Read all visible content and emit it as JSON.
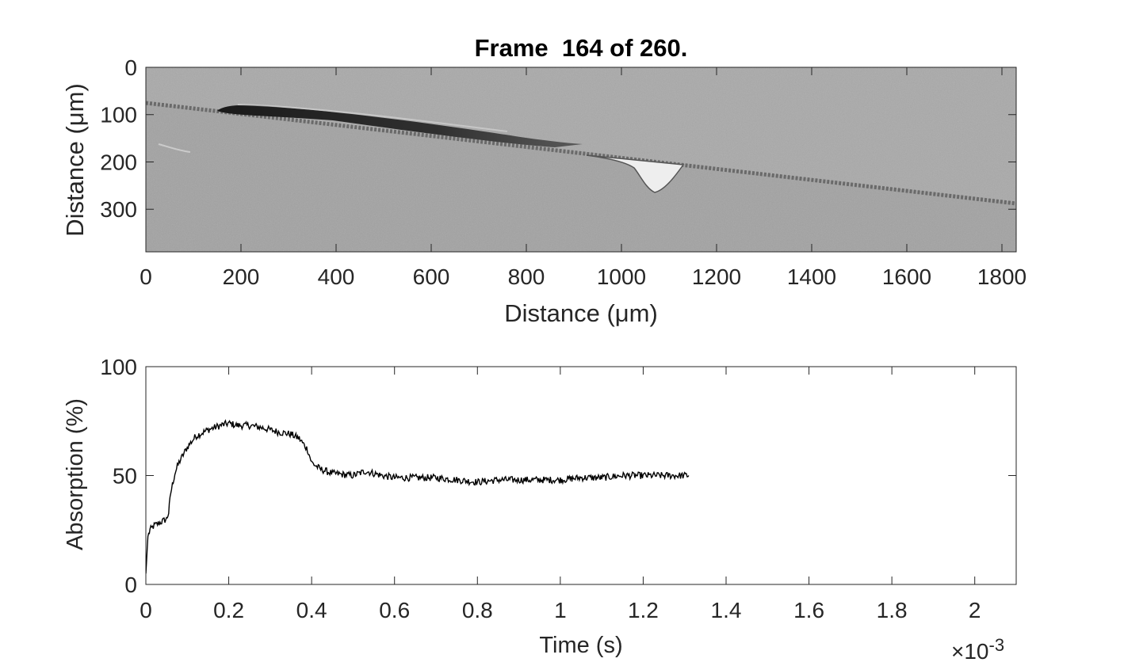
{
  "chart_data": [
    {
      "type": "heatmap",
      "title": "Frame  164 of 260.",
      "xlabel": "Distance (μm)",
      "ylabel": "Distance (μm)",
      "xlim": [
        0,
        1830
      ],
      "ylim": [
        390,
        0
      ],
      "y_reversed": true,
      "xticks": [
        0,
        200,
        400,
        600,
        800,
        1000,
        1200,
        1400,
        1600,
        1800
      ],
      "yticks": [
        0,
        100,
        200,
        300
      ],
      "colormap": "gray",
      "grid": false,
      "image_description_features": {
        "interface_line": [
          [
            0,
            75
          ],
          [
            1830,
            285
          ]
        ],
        "dark_region": [
          [
            150,
            90
          ],
          [
            280,
            85
          ],
          [
            500,
            110
          ],
          [
            700,
            145
          ],
          [
            850,
            155
          ]
        ],
        "bright_region": [
          [
            930,
            185
          ],
          [
            1010,
            200
          ],
          [
            1065,
            258
          ],
          [
            1110,
            235
          ],
          [
            1140,
            205
          ]
        ]
      }
    },
    {
      "type": "line",
      "title": "",
      "xlabel": "Time (s)",
      "ylabel": "Absorption (%)",
      "xlim": [
        0,
        0.0021
      ],
      "ylim": [
        0,
        100
      ],
      "x_scale_label": "×10",
      "x_scale_exponent": "-3",
      "xticks": [
        "0",
        "0.2",
        "0.4",
        "0.6",
        "0.8",
        "1",
        "1.2",
        "1.4",
        "1.6",
        "1.8",
        "2"
      ],
      "yticks": [
        "0",
        "50",
        "100"
      ],
      "grid": false,
      "series": [
        {
          "color": "#000000",
          "x": [
            0,
            5e-06,
            1e-05,
            2e-05,
            3e-05,
            4e-05,
            5e-05,
            5.5e-05,
            6e-05,
            7e-05,
            8e-05,
            0.0001,
            0.00012,
            0.00015,
            0.00018,
            0.0002,
            0.00022,
            0.00025,
            0.00028,
            0.0003,
            0.00032,
            0.00035,
            0.00037,
            0.00039,
            0.0004,
            0.00042,
            0.00045,
            0.0005,
            0.00053,
            0.00055,
            0.00057,
            0.0006,
            0.00065,
            0.0007,
            0.00075,
            0.0008,
            0.00085,
            0.0009,
            0.00095,
            0.001,
            0.00105,
            0.0011,
            0.00115,
            0.0012,
            0.00125,
            0.0013,
            0.00131
          ],
          "y": [
            5,
            22,
            25,
            27,
            28,
            29,
            30,
            33,
            42,
            51,
            56,
            63,
            68,
            71,
            73,
            74,
            73,
            73,
            72,
            71,
            70,
            69,
            67,
            62,
            56,
            53,
            51,
            50,
            52,
            51,
            50,
            49,
            49,
            49,
            48,
            47,
            48,
            48,
            48,
            48,
            49,
            49,
            50,
            50,
            50,
            50,
            50
          ]
        }
      ]
    }
  ]
}
